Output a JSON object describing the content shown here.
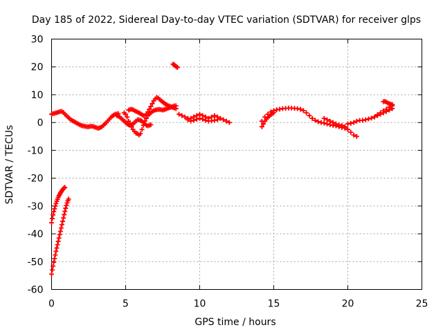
{
  "chart_data": {
    "type": "scatter",
    "title": "Day 185 of 2022, Sidereal Day-to-day VTEC variation (SDTVAR) for receiver glps",
    "xlabel": "GPS time / hours",
    "ylabel": "SDTVAR / TECUs",
    "xlim": [
      0,
      25
    ],
    "ylim": [
      -60,
      30
    ],
    "xticks": [
      0,
      5,
      10,
      15,
      20,
      25
    ],
    "yticks": [
      -60,
      -50,
      -40,
      -30,
      -20,
      -10,
      0,
      10,
      20,
      30
    ],
    "grid": true,
    "marker": "+",
    "color": "#ff0000",
    "series": [
      {
        "name": "SDTVAR",
        "segments": [
          {
            "x": [
              0.0,
              0.1,
              0.2,
              0.3,
              0.4,
              0.5,
              0.6,
              0.7,
              0.8,
              0.9,
              1.0,
              1.1,
              1.2,
              1.3,
              1.4,
              1.5,
              1.6,
              1.7,
              1.8,
              1.9,
              2.0,
              2.1,
              2.2,
              2.3,
              2.4,
              2.5,
              2.6,
              2.7,
              2.8,
              2.9,
              3.0,
              3.1,
              3.2,
              3.3,
              3.4,
              3.5,
              3.6,
              3.7,
              3.8,
              3.9,
              4.0,
              4.1,
              4.2,
              4.3,
              4.4,
              4.5
            ],
            "y": [
              3.0,
              3.2,
              3.3,
              3.5,
              3.6,
              3.8,
              4.0,
              4.0,
              3.6,
              3.0,
              2.5,
              2.0,
              1.5,
              1.0,
              0.7,
              0.4,
              0.1,
              -0.2,
              -0.5,
              -0.8,
              -1.0,
              -1.2,
              -1.3,
              -1.4,
              -1.5,
              -1.5,
              -1.4,
              -1.3,
              -1.4,
              -1.6,
              -1.8,
              -2.0,
              -2.0,
              -1.8,
              -1.5,
              -1.0,
              -0.5,
              0.0,
              0.6,
              1.2,
              1.8,
              2.3,
              2.7,
              3.0,
              3.1,
              3.2
            ]
          },
          {
            "x": [
              0.0,
              0.05,
              0.1,
              0.15,
              0.2,
              0.25,
              0.3,
              0.35,
              0.4,
              0.45,
              0.5,
              0.55,
              0.6,
              0.65,
              0.7,
              0.75,
              0.8,
              0.85,
              0.9
            ],
            "y": [
              -36.0,
              -34.5,
              -33.2,
              -32.0,
              -31.0,
              -30.0,
              -29.1,
              -28.3,
              -27.6,
              -26.9,
              -26.3,
              -25.8,
              -25.3,
              -24.9,
              -24.5,
              -24.1,
              -23.8,
              -23.5,
              -23.3
            ]
          },
          {
            "x": [
              0.0,
              0.05,
              0.1,
              0.15,
              0.2,
              0.25,
              0.3,
              0.35,
              0.4,
              0.45,
              0.5,
              0.55,
              0.6,
              0.65,
              0.7,
              0.75,
              0.8,
              0.85,
              0.9,
              0.95,
              1.0,
              1.05,
              1.1,
              1.15
            ],
            "y": [
              -54.5,
              -53.0,
              -51.6,
              -50.2,
              -48.9,
              -47.6,
              -46.3,
              -45.1,
              -43.9,
              -42.7,
              -41.5,
              -40.3,
              -39.1,
              -37.9,
              -36.7,
              -35.5,
              -34.3,
              -33.1,
              -31.9,
              -30.8,
              -29.8,
              -28.9,
              -28.1,
              -27.5
            ]
          },
          {
            "x": [
              4.9,
              5.0,
              5.1,
              5.2,
              5.3,
              5.4,
              5.5,
              5.6,
              5.7,
              5.8,
              5.9,
              6.0,
              6.1,
              6.2,
              6.3,
              6.4,
              6.5,
              6.6,
              6.7,
              6.8,
              6.9,
              7.0,
              7.1,
              7.2,
              7.3,
              7.4,
              7.5,
              7.6,
              7.7,
              7.8,
              7.9,
              8.0,
              8.1,
              8.2,
              8.3,
              8.4
            ],
            "y": [
              3.5,
              3.0,
              2.0,
              0.5,
              -0.5,
              -1.5,
              -2.5,
              -3.2,
              -3.8,
              -4.0,
              -4.5,
              -4.0,
              -2.5,
              -1.0,
              0.5,
              1.5,
              2.5,
              3.0,
              3.5,
              4.0,
              4.3,
              4.5,
              4.6,
              4.7,
              4.7,
              4.6,
              4.5,
              4.6,
              4.8,
              5.0,
              5.2,
              5.4,
              5.6,
              5.8,
              6.0,
              6.0
            ]
          },
          {
            "x": [
              5.2,
              5.3,
              5.4,
              5.5,
              5.6,
              5.7,
              5.8,
              5.9,
              6.0,
              6.1,
              6.2,
              6.3,
              6.4,
              6.5,
              6.6,
              6.7,
              6.8,
              6.9,
              7.0,
              7.1,
              7.2,
              7.3,
              7.4,
              7.5,
              7.6,
              7.7,
              7.8,
              7.9,
              8.0,
              8.1,
              8.2,
              8.3,
              8.4
            ],
            "y": [
              4.5,
              4.7,
              4.8,
              4.6,
              4.3,
              4.0,
              3.8,
              3.5,
              3.2,
              2.8,
              2.5,
              2.5,
              3.0,
              3.8,
              4.8,
              5.8,
              6.8,
              7.8,
              8.5,
              9.0,
              8.8,
              8.3,
              7.8,
              7.4,
              7.0,
              6.6,
              6.3,
              6.0,
              5.8,
              5.6,
              5.4,
              5.2,
              5.0
            ]
          },
          {
            "x": [
              4.4,
              4.5,
              4.6,
              4.7,
              4.8,
              4.9,
              5.0,
              5.1,
              5.2,
              5.3,
              5.4,
              5.5,
              5.6,
              5.7,
              5.8,
              5.9,
              6.0,
              6.1,
              6.2,
              6.3,
              6.4,
              6.5,
              6.6,
              6.7
            ],
            "y": [
              2.5,
              2.3,
              2.0,
              1.5,
              1.0,
              0.5,
              0.0,
              -0.5,
              -0.8,
              -1.0,
              -0.8,
              -0.5,
              0.0,
              0.5,
              1.0,
              1.0,
              0.8,
              0.5,
              0.0,
              -0.5,
              -1.0,
              -1.2,
              -1.0,
              -0.8
            ]
          },
          {
            "x": [
              8.2,
              8.25,
              8.3,
              8.35,
              8.4,
              8.45,
              8.5
            ],
            "y": [
              21.0,
              20.8,
              20.6,
              20.4,
              20.2,
              20.0,
              19.8
            ]
          },
          {
            "x": [
              8.6,
              8.8,
              9.0,
              9.2,
              9.4,
              9.6,
              9.8,
              10.0,
              10.2,
              10.4,
              10.6,
              10.8,
              11.0,
              11.2,
              11.4,
              11.6,
              11.8,
              12.0
            ],
            "y": [
              3.0,
              2.5,
              2.0,
              1.5,
              1.5,
              2.0,
              2.5,
              3.0,
              2.5,
              2.0,
              1.5,
              2.0,
              2.5,
              2.0,
              1.5,
              1.0,
              0.5,
              0.0
            ]
          },
          {
            "x": [
              9.2,
              9.4,
              9.6,
              9.8,
              10.0,
              10.2,
              10.4,
              10.6,
              10.8,
              11.0,
              11.2
            ],
            "y": [
              1.0,
              0.5,
              0.8,
              1.2,
              1.5,
              1.2,
              0.8,
              0.5,
              0.6,
              0.8,
              1.0
            ]
          },
          {
            "x": [
              14.2,
              14.4,
              14.6,
              14.8,
              15.0,
              15.2,
              15.4,
              15.6,
              15.8,
              16.0,
              16.2,
              16.4,
              16.6,
              16.8,
              17.0,
              17.2,
              17.4,
              17.6,
              17.8,
              18.0,
              18.2,
              18.4,
              18.6,
              18.8,
              19.0,
              19.2,
              19.4,
              19.6,
              19.8,
              20.0
            ],
            "y": [
              0.5,
              2.0,
              3.0,
              3.8,
              4.3,
              4.6,
              4.8,
              5.0,
              5.1,
              5.2,
              5.2,
              5.1,
              5.0,
              4.8,
              4.3,
              3.5,
              2.5,
              1.5,
              0.8,
              0.3,
              0.0,
              -0.2,
              -0.5,
              -0.8,
              -1.0,
              -1.2,
              -1.5,
              -1.8,
              -2.0,
              -2.5
            ]
          },
          {
            "x": [
              14.2,
              14.3,
              14.4,
              14.5,
              14.6,
              14.7,
              14.8,
              14.9,
              15.0
            ],
            "y": [
              -1.5,
              -0.5,
              0.5,
              1.2,
              1.8,
              2.3,
              2.8,
              3.2,
              3.6
            ]
          },
          {
            "x": [
              18.4,
              18.6,
              18.8,
              19.0,
              19.2,
              19.4,
              19.6,
              19.8,
              20.0,
              20.2,
              20.4,
              20.6
            ],
            "y": [
              1.5,
              1.0,
              0.5,
              0.0,
              -0.5,
              -0.8,
              -1.0,
              -1.5,
              -2.5,
              -3.5,
              -4.5,
              -5.0
            ]
          },
          {
            "x": [
              20.0,
              20.2,
              20.4,
              20.6,
              20.8,
              21.0,
              21.2,
              21.4,
              21.6,
              21.8,
              22.0,
              22.2,
              22.4,
              22.6,
              22.8,
              23.0
            ],
            "y": [
              -0.5,
              -0.3,
              0.0,
              0.5,
              0.8,
              0.8,
              1.0,
              1.3,
              1.6,
              2.0,
              2.5,
              3.0,
              3.5,
              4.0,
              4.5,
              5.0
            ]
          },
          {
            "x": [
              21.8,
              22.0,
              22.2,
              22.4,
              22.6,
              22.8,
              23.0
            ],
            "y": [
              2.0,
              2.8,
              3.5,
              4.2,
              4.8,
              5.5,
              6.0
            ]
          },
          {
            "x": [
              22.4,
              22.5,
              22.6,
              22.7,
              22.8,
              22.9,
              23.0
            ],
            "y": [
              7.5,
              7.6,
              7.4,
              7.0,
              6.8,
              6.6,
              6.5
            ]
          }
        ]
      }
    ]
  }
}
